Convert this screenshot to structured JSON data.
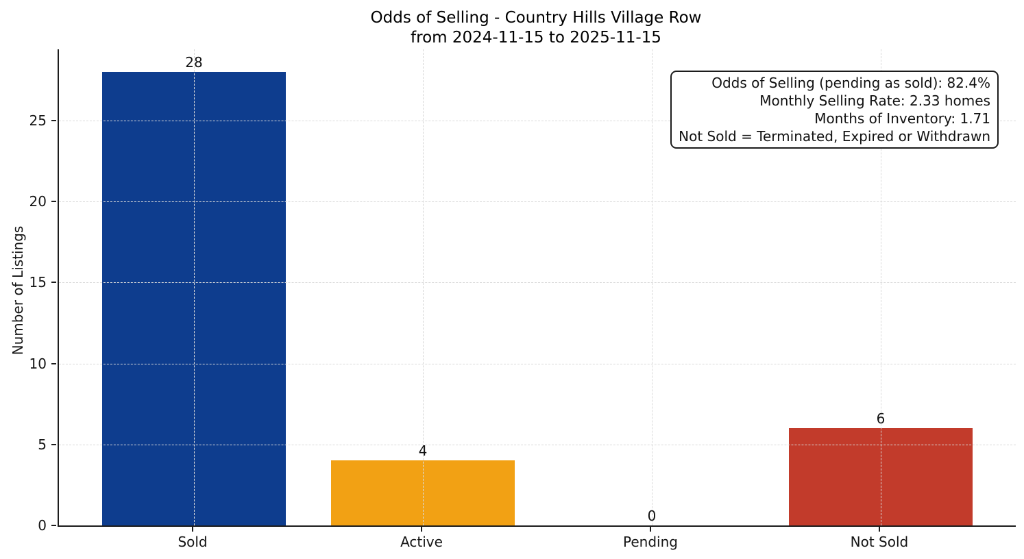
{
  "title": {
    "line1": "Odds of Selling - Country Hills Village Row",
    "line2": "from 2024-11-15 to 2025-11-15"
  },
  "annotation": {
    "lines": [
      "Odds of Selling (pending as sold): 82.4%",
      "Monthly Selling Rate: 2.33 homes",
      "Months of Inventory: 1.71",
      "Not Sold = Terminated, Expired or Withdrawn"
    ]
  },
  "chart_data": {
    "type": "bar",
    "title": "Odds of Selling - Country Hills Village Row",
    "subtitle": "from 2024-11-15 to 2025-11-15",
    "xlabel": "",
    "ylabel": "Number of Listings",
    "categories": [
      "Sold",
      "Active",
      "Pending",
      "Not Sold"
    ],
    "values": [
      28,
      4,
      0,
      6
    ],
    "bar_colors": [
      "#0e3d8e",
      "#f2a114",
      null,
      "#c23b2b"
    ],
    "value_labels": [
      "28",
      "4",
      "0",
      "6"
    ],
    "yticks": [
      0,
      5,
      10,
      15,
      20,
      25
    ],
    "ylim": [
      0,
      29.4
    ],
    "grid": "dashed, both axes, light gray, drawn above bars",
    "legend": "none",
    "annotation_box_lines": [
      "Odds of Selling (pending as sold): 82.4%",
      "Monthly Selling Rate: 2.33 homes",
      "Months of Inventory: 1.71",
      "Not Sold = Terminated, Expired or Withdrawn"
    ]
  },
  "colors": {
    "sold_bar": "#0e3d8e",
    "active_bar": "#f2a114",
    "not_sold_bar": "#c23b2b",
    "spine": "#1c1c1c",
    "grid": "#d9d9d9",
    "background": "#ffffff"
  }
}
